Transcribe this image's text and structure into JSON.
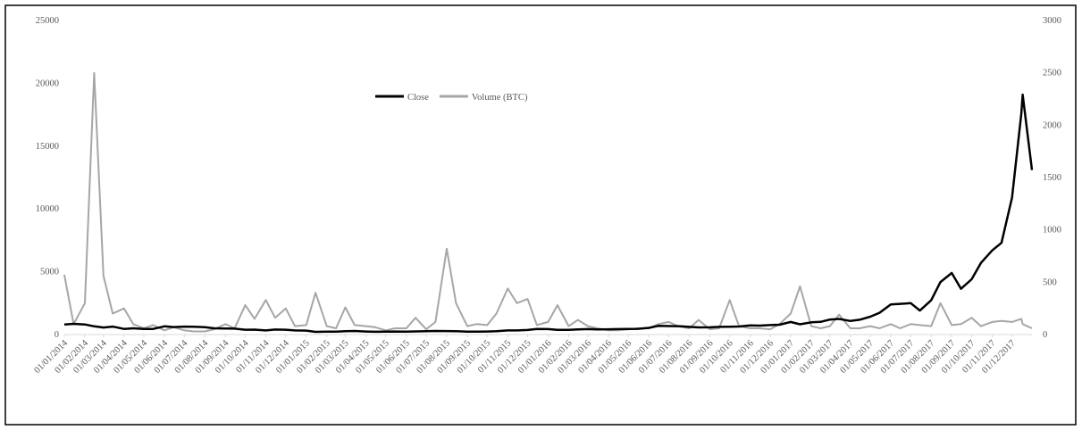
{
  "chart_data": {
    "type": "line",
    "xlim": [
      "01/01/2014",
      "31/12/2017"
    ],
    "xticks": [
      "01/01/2014",
      "01/02/2014",
      "01/03/2014",
      "01/04/2014",
      "01/05/2014",
      "01/06/2014",
      "01/07/2014",
      "01/08/2014",
      "01/09/2014",
      "01/10/2014",
      "01/11/2014",
      "01/12/2014",
      "01/01/2015",
      "01/02/2015",
      "01/03/2015",
      "01/04/2015",
      "01/05/2015",
      "01/06/2015",
      "01/07/2015",
      "01/08/2015",
      "01/09/2015",
      "01/10/2015",
      "01/11/2015",
      "01/12/2015",
      "01/01/2016",
      "01/02/2016",
      "01/03/2016",
      "01/04/2016",
      "01/05/2016",
      "01/06/2016",
      "01/07/2016",
      "01/08/2016",
      "01/09/2016",
      "01/10/2016",
      "01/11/2016",
      "01/12/2016",
      "01/01/2017",
      "01/02/2017",
      "01/03/2017",
      "01/04/2017",
      "01/05/2017",
      "01/06/2017",
      "01/07/2017",
      "01/08/2017",
      "01/09/2017",
      "01/10/2017",
      "01/11/2017",
      "01/12/2017"
    ],
    "x": [
      "01/01/2014",
      "15/01/2014",
      "01/02/2014",
      "15/02/2014",
      "01/03/2014",
      "15/03/2014",
      "01/04/2014",
      "15/04/2014",
      "01/05/2014",
      "15/05/2014",
      "01/06/2014",
      "15/06/2014",
      "01/07/2014",
      "15/07/2014",
      "01/08/2014",
      "15/08/2014",
      "01/09/2014",
      "15/09/2014",
      "01/10/2014",
      "15/10/2014",
      "01/11/2014",
      "15/11/2014",
      "01/12/2014",
      "15/12/2014",
      "01/01/2015",
      "15/01/2015",
      "01/02/2015",
      "15/02/2015",
      "01/03/2015",
      "15/03/2015",
      "01/04/2015",
      "15/04/2015",
      "01/05/2015",
      "15/05/2015",
      "01/06/2015",
      "15/06/2015",
      "01/07/2015",
      "15/07/2015",
      "01/08/2015",
      "15/08/2015",
      "01/09/2015",
      "15/09/2015",
      "01/10/2015",
      "15/10/2015",
      "01/11/2015",
      "15/11/2015",
      "01/12/2015",
      "15/12/2015",
      "01/01/2016",
      "15/01/2016",
      "01/02/2016",
      "15/02/2016",
      "01/03/2016",
      "15/03/2016",
      "01/04/2016",
      "15/04/2016",
      "01/05/2016",
      "15/05/2016",
      "01/06/2016",
      "15/06/2016",
      "01/07/2016",
      "15/07/2016",
      "01/08/2016",
      "15/08/2016",
      "01/09/2016",
      "15/09/2016",
      "01/10/2016",
      "15/10/2016",
      "01/11/2016",
      "15/11/2016",
      "01/12/2016",
      "15/12/2016",
      "01/01/2017",
      "15/01/2017",
      "01/02/2017",
      "15/02/2017",
      "01/03/2017",
      "15/03/2017",
      "01/04/2017",
      "15/04/2017",
      "01/05/2017",
      "15/05/2017",
      "01/06/2017",
      "15/06/2017",
      "01/07/2017",
      "15/07/2017",
      "01/08/2017",
      "15/08/2017",
      "01/09/2017",
      "15/09/2017",
      "01/10/2017",
      "15/10/2017",
      "01/11/2017",
      "15/11/2017",
      "01/12/2017",
      "15/12/2017",
      "17/12/2017",
      "31/12/2017"
    ],
    "series": [
      {
        "name": "Close",
        "color": "#000000",
        "axis": "y",
        "values": [
          800,
          850,
          800,
          650,
          560,
          630,
          450,
          500,
          450,
          450,
          650,
          600,
          630,
          620,
          590,
          500,
          480,
          470,
          380,
          390,
          330,
          400,
          380,
          330,
          315,
          210,
          225,
          235,
          260,
          285,
          245,
          220,
          235,
          240,
          225,
          250,
          260,
          285,
          280,
          260,
          230,
          230,
          240,
          265,
          330,
          330,
          360,
          450,
          430,
          375,
          370,
          405,
          435,
          415,
          420,
          430,
          450,
          455,
          535,
          690,
          675,
          665,
          610,
          570,
          575,
          610,
          615,
          640,
          730,
          710,
          750,
          780,
          1000,
          820,
          970,
          1010,
          1190,
          1240,
          1080,
          1180,
          1420,
          1730,
          2400,
          2440,
          2500,
          1910,
          2730,
          4180,
          4900,
          3640,
          4400,
          5700,
          6700,
          7300,
          10900,
          17600,
          19100,
          13100
        ]
      },
      {
        "name": "Volume (BTC)",
        "color": "#a6a6a6",
        "axis": "y2",
        "values": [
          570,
          100,
          300,
          2500,
          560,
          200,
          250,
          100,
          60,
          90,
          40,
          70,
          40,
          30,
          30,
          50,
          100,
          60,
          280,
          150,
          330,
          160,
          250,
          80,
          90,
          400,
          80,
          60,
          260,
          90,
          80,
          70,
          40,
          60,
          60,
          160,
          50,
          120,
          820,
          300,
          80,
          100,
          90,
          200,
          440,
          300,
          340,
          90,
          120,
          280,
          80,
          140,
          80,
          60,
          40,
          40,
          50,
          60,
          60,
          100,
          120,
          80,
          60,
          140,
          50,
          60,
          330,
          80,
          60,
          60,
          50,
          100,
          200,
          460,
          80,
          60,
          80,
          190,
          60,
          60,
          80,
          60,
          100,
          60,
          100,
          90,
          80,
          300,
          90,
          100,
          160,
          80,
          120,
          130,
          120,
          150,
          100,
          60
        ]
      }
    ],
    "ylim": [
      0,
      25000
    ],
    "yticks": [
      0,
      5000,
      10000,
      15000,
      20000,
      25000
    ],
    "y2lim": [
      0,
      3000
    ],
    "y2ticks": [
      0,
      500,
      1000,
      1500,
      2000,
      2500,
      3000
    ],
    "legend": "top"
  }
}
